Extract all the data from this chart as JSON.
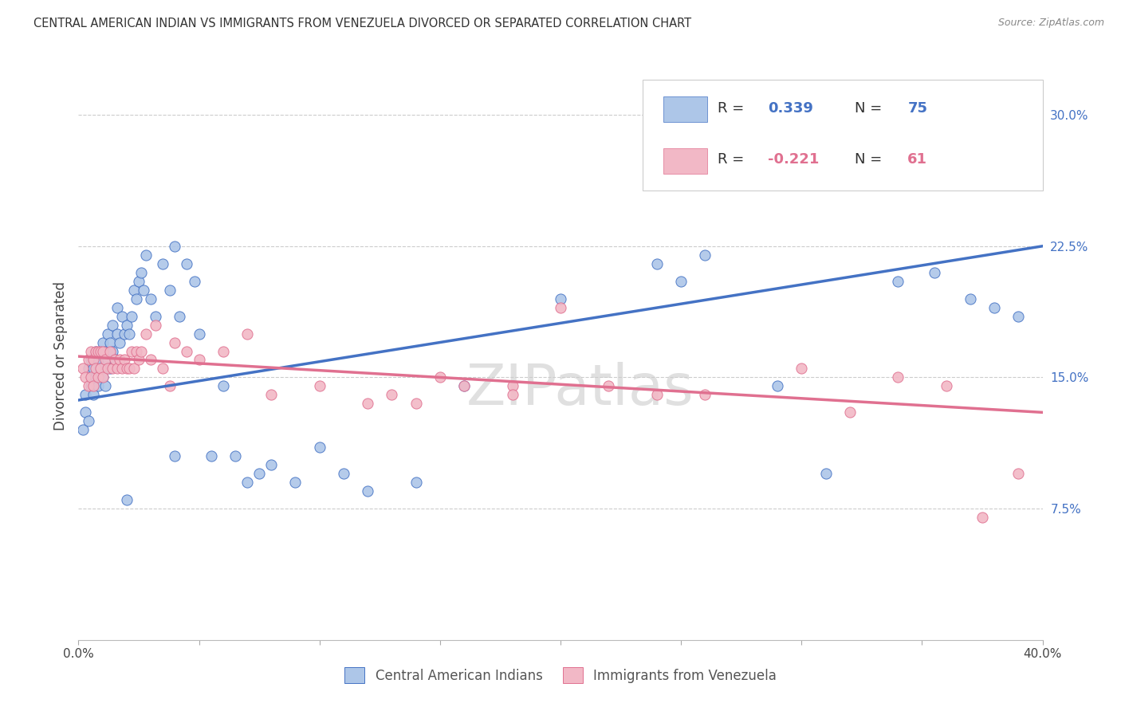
{
  "title": "CENTRAL AMERICAN INDIAN VS IMMIGRANTS FROM VENEZUELA DIVORCED OR SEPARATED CORRELATION CHART",
  "source": "Source: ZipAtlas.com",
  "ylabel": "Divorced or Separated",
  "ytick_labels": [
    "7.5%",
    "15.0%",
    "22.5%",
    "30.0%"
  ],
  "ytick_values": [
    0.075,
    0.15,
    0.225,
    0.3
  ],
  "xmin": 0.0,
  "xmax": 0.4,
  "ymin": 0.0,
  "ymax": 0.325,
  "blue_color": "#adc6e8",
  "pink_color": "#f2b8c6",
  "blue_line_color": "#4472c4",
  "pink_line_color": "#e07090",
  "blue_n": 75,
  "pink_n": 61,
  "blue_r": "0.339",
  "pink_r": "-0.221",
  "blue_trend_x0": 0.0,
  "blue_trend_y0": 0.137,
  "blue_trend_x1": 0.4,
  "blue_trend_y1": 0.225,
  "pink_trend_x0": 0.0,
  "pink_trend_y0": 0.162,
  "pink_trend_x1": 0.4,
  "pink_trend_y1": 0.13,
  "background_color": "#ffffff",
  "grid_color": "#cccccc",
  "blue_scatter_x": [
    0.002,
    0.003,
    0.003,
    0.004,
    0.004,
    0.005,
    0.005,
    0.005,
    0.006,
    0.006,
    0.007,
    0.007,
    0.008,
    0.008,
    0.009,
    0.009,
    0.01,
    0.01,
    0.011,
    0.011,
    0.012,
    0.012,
    0.013,
    0.013,
    0.014,
    0.014,
    0.015,
    0.016,
    0.016,
    0.017,
    0.018,
    0.019,
    0.02,
    0.021,
    0.022,
    0.023,
    0.024,
    0.025,
    0.026,
    0.027,
    0.028,
    0.03,
    0.032,
    0.035,
    0.038,
    0.04,
    0.042,
    0.045,
    0.048,
    0.05,
    0.055,
    0.06,
    0.065,
    0.07,
    0.075,
    0.08,
    0.09,
    0.1,
    0.11,
    0.12,
    0.14,
    0.16,
    0.2,
    0.25,
    0.29,
    0.31,
    0.34,
    0.355,
    0.37,
    0.38,
    0.39,
    0.24,
    0.26,
    0.04,
    0.02
  ],
  "blue_scatter_y": [
    0.12,
    0.13,
    0.14,
    0.125,
    0.155,
    0.145,
    0.15,
    0.16,
    0.14,
    0.155,
    0.15,
    0.165,
    0.145,
    0.16,
    0.155,
    0.165,
    0.15,
    0.17,
    0.145,
    0.165,
    0.16,
    0.175,
    0.155,
    0.17,
    0.165,
    0.18,
    0.16,
    0.175,
    0.19,
    0.17,
    0.185,
    0.175,
    0.18,
    0.175,
    0.185,
    0.2,
    0.195,
    0.205,
    0.21,
    0.2,
    0.22,
    0.195,
    0.185,
    0.215,
    0.2,
    0.225,
    0.185,
    0.215,
    0.205,
    0.175,
    0.105,
    0.145,
    0.105,
    0.09,
    0.095,
    0.1,
    0.09,
    0.11,
    0.095,
    0.085,
    0.09,
    0.145,
    0.195,
    0.205,
    0.145,
    0.095,
    0.205,
    0.21,
    0.195,
    0.19,
    0.185,
    0.215,
    0.22,
    0.105,
    0.08
  ],
  "pink_scatter_x": [
    0.002,
    0.003,
    0.004,
    0.004,
    0.005,
    0.005,
    0.006,
    0.006,
    0.007,
    0.007,
    0.008,
    0.008,
    0.009,
    0.009,
    0.01,
    0.01,
    0.011,
    0.012,
    0.013,
    0.014,
    0.015,
    0.016,
    0.017,
    0.018,
    0.019,
    0.02,
    0.021,
    0.022,
    0.023,
    0.024,
    0.025,
    0.026,
    0.028,
    0.03,
    0.032,
    0.035,
    0.038,
    0.04,
    0.045,
    0.05,
    0.06,
    0.07,
    0.08,
    0.1,
    0.12,
    0.14,
    0.16,
    0.18,
    0.2,
    0.22,
    0.24,
    0.26,
    0.3,
    0.32,
    0.34,
    0.36,
    0.375,
    0.39,
    0.13,
    0.15,
    0.18
  ],
  "pink_scatter_y": [
    0.155,
    0.15,
    0.145,
    0.16,
    0.15,
    0.165,
    0.145,
    0.16,
    0.155,
    0.165,
    0.15,
    0.165,
    0.155,
    0.165,
    0.15,
    0.165,
    0.16,
    0.155,
    0.165,
    0.155,
    0.16,
    0.155,
    0.16,
    0.155,
    0.16,
    0.155,
    0.155,
    0.165,
    0.155,
    0.165,
    0.16,
    0.165,
    0.175,
    0.16,
    0.18,
    0.155,
    0.145,
    0.17,
    0.165,
    0.16,
    0.165,
    0.175,
    0.14,
    0.145,
    0.135,
    0.135,
    0.145,
    0.145,
    0.19,
    0.145,
    0.14,
    0.14,
    0.155,
    0.13,
    0.15,
    0.145,
    0.07,
    0.095,
    0.14,
    0.15,
    0.14
  ]
}
